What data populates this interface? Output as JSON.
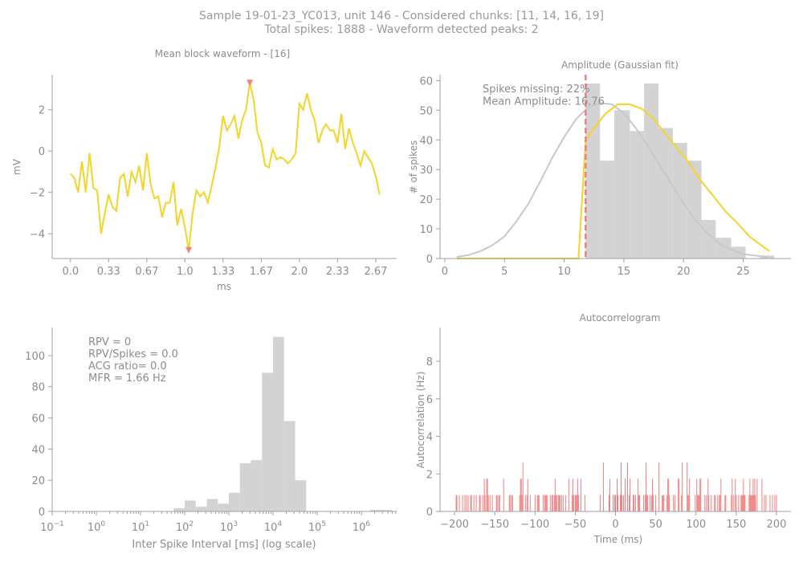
{
  "header": {
    "line1": "Sample 19-01-23_YC013, unit 146 - Considered chunks: [11, 14, 16, 19]",
    "line2": "Total spikes: 1888 - Waveform detected peaks: 2"
  },
  "colors": {
    "waveform": "#f5d327",
    "peak_marker": "#f08080",
    "hist_bar": "#d3d3d3",
    "gauss_fit": "#c8c8c8",
    "threshold": "#f08080",
    "acg": "#f08080",
    "axis": "#a0a0a0",
    "text": "#8c8c8c"
  },
  "chart_data": [
    {
      "id": "waveform",
      "type": "line",
      "title": "Mean block waveform - [16]",
      "xlabel": "ms",
      "ylabel": "mV",
      "xlim": [
        -0.16,
        2.85
      ],
      "ylim": [
        -5.2,
        3.7
      ],
      "xtick_values": [
        0.0,
        0.333,
        0.667,
        1.0,
        1.333,
        1.667,
        2.0,
        2.333,
        2.667
      ],
      "xtick_labels": [
        "0.0",
        "0.33",
        "0.67",
        "1.0",
        "1.33",
        "1.67",
        "2.0",
        "2.33",
        "2.67"
      ],
      "ytick_values": [
        -4,
        -2,
        0,
        2
      ],
      "ytick_labels": [
        "−4",
        "−2",
        "0",
        "2"
      ],
      "x": [
        0.0,
        0.033,
        0.067,
        0.1,
        0.133,
        0.167,
        0.2,
        0.233,
        0.267,
        0.3,
        0.333,
        0.367,
        0.4,
        0.433,
        0.467,
        0.5,
        0.533,
        0.567,
        0.6,
        0.633,
        0.667,
        0.7,
        0.733,
        0.767,
        0.8,
        0.833,
        0.867,
        0.9,
        0.933,
        0.967,
        1.0,
        1.033,
        1.067,
        1.1,
        1.133,
        1.167,
        1.2,
        1.233,
        1.267,
        1.3,
        1.333,
        1.367,
        1.4,
        1.433,
        1.467,
        1.5,
        1.533,
        1.567,
        1.6,
        1.633,
        1.667,
        1.7,
        1.733,
        1.767,
        1.8,
        1.833,
        1.867,
        1.9,
        1.933,
        1.967,
        2.0,
        2.033,
        2.067,
        2.1,
        2.133,
        2.167,
        2.2,
        2.233,
        2.267,
        2.3,
        2.333,
        2.367,
        2.4,
        2.433,
        2.467,
        2.5,
        2.533,
        2.567,
        2.6,
        2.633,
        2.667,
        2.7
      ],
      "values": [
        -1.1,
        -1.3,
        -2.0,
        -0.5,
        -2.0,
        -0.1,
        -1.8,
        -1.9,
        -4.0,
        -3.0,
        -2.1,
        -2.7,
        -2.9,
        -1.3,
        -1.1,
        -2.2,
        -1.0,
        -1.5,
        -0.7,
        -1.9,
        -0.1,
        -1.6,
        -2.3,
        -2.2,
        -3.2,
        -2.5,
        -2.5,
        -1.5,
        -3.6,
        -2.8,
        -3.7,
        -4.8,
        -3.0,
        -1.9,
        -2.2,
        -2.0,
        -2.5,
        -1.7,
        -0.8,
        0.2,
        1.7,
        1.0,
        1.3,
        1.7,
        0.6,
        1.5,
        2.0,
        3.3,
        2.5,
        0.9,
        0.4,
        -0.7,
        -0.8,
        0.1,
        -0.4,
        -0.3,
        -0.4,
        -0.6,
        -0.4,
        -0.1,
        2.3,
        2.0,
        2.8,
        2.0,
        1.5,
        0.4,
        1.0,
        1.3,
        1.0,
        1.0,
        0.4,
        1.8,
        0.1,
        1.1,
        0.4,
        -0.1,
        -0.7,
        0.0,
        -0.3,
        -0.6,
        -1.2,
        -2.1
      ],
      "peaks": [
        {
          "x": 1.033,
          "y": -4.8,
          "dir": "down"
        },
        {
          "x": 1.567,
          "y": 3.3,
          "dir": "up"
        }
      ]
    },
    {
      "id": "amplitude",
      "type": "bar",
      "title": "Amplitude (Gaussian fit)",
      "ylabel": "# of spikes",
      "xlim": [
        -0.4,
        29.0
      ],
      "ylim": [
        0,
        62
      ],
      "xtick_values": [
        0,
        5,
        10,
        15,
        20,
        25
      ],
      "xtick_labels": [
        "0",
        "5",
        "10",
        "15",
        "20",
        "25"
      ],
      "ytick_values": [
        0,
        10,
        20,
        30,
        40,
        50,
        60
      ],
      "ytick_labels": [
        "0",
        "10",
        "20",
        "30",
        "40",
        "50",
        "60"
      ],
      "bin_edges": [
        11.8,
        13.0,
        14.2,
        15.5,
        16.7,
        17.9,
        19.1,
        20.3,
        21.5,
        22.7,
        24.0,
        25.2,
        26.4,
        27.6
      ],
      "counts": [
        59,
        33,
        50,
        43,
        59,
        44,
        39,
        33,
        13,
        7,
        4,
        0,
        1
      ],
      "gauss_x": [
        1,
        2,
        3,
        4,
        5,
        6,
        7,
        8,
        9,
        10,
        11,
        12,
        13,
        14,
        15,
        16,
        17,
        18,
        19,
        20,
        21,
        22,
        23,
        24,
        25,
        26,
        27
      ],
      "gauss_y": [
        0.5,
        1.2,
        2.5,
        4.5,
        7.5,
        12.5,
        18.5,
        26,
        34,
        41,
        47,
        51,
        52.5,
        52,
        49,
        44,
        38,
        31.5,
        25,
        18.5,
        13,
        8.5,
        5,
        3,
        1.5,
        1,
        0.5
      ],
      "fit_curve_x": [
        1,
        2.5,
        4,
        5.5,
        7,
        8.5,
        10,
        11.2,
        11.8,
        12.5,
        13.5,
        14.5,
        15.5,
        16.5,
        17.5,
        18.5,
        19.5,
        20.5,
        21.5,
        22.5,
        23.5,
        24.5,
        25.5,
        26.5,
        27.2
      ],
      "fit_curve_y": [
        0,
        0,
        0,
        0,
        0,
        0,
        0,
        0,
        40,
        44,
        49,
        52,
        52,
        50.5,
        47,
        42,
        37,
        32,
        26,
        21,
        16,
        12,
        7.5,
        4.5,
        2.5
      ],
      "threshold_x": 11.8,
      "annotation": [
        "Spikes missing: 22%",
        "Mean Amplitude: 16.76"
      ]
    },
    {
      "id": "isi",
      "type": "bar",
      "xlabel": "Inter Spike Interval [ms] (log scale)",
      "xscale": "log",
      "xlim_log10": [
        -1,
        6.8
      ],
      "ylim": [
        0,
        118
      ],
      "xtick_values_log10": [
        -1,
        0,
        1,
        2,
        3,
        4,
        5,
        6
      ],
      "xtick_bases": [
        "10",
        "10",
        "10",
        "10",
        "10",
        "10",
        "10",
        "10"
      ],
      "xtick_exps": [
        "−1",
        "0",
        "1",
        "2",
        "3",
        "4",
        "5",
        "6"
      ],
      "ytick_values": [
        0,
        20,
        40,
        60,
        80,
        100
      ],
      "ytick_labels": [
        "0",
        "20",
        "40",
        "60",
        "80",
        "100"
      ],
      "bin_edges_log10": [
        1.75,
        2.0,
        2.25,
        2.5,
        2.75,
        3.0,
        3.25,
        3.5,
        3.75,
        4.0,
        4.25,
        4.5,
        4.75,
        5.0
      ],
      "counts": [
        2,
        7,
        3,
        8,
        5,
        12,
        31,
        33,
        89,
        112,
        58,
        20,
        0
      ],
      "extra_bins_log10": [
        [
          6.2,
          6.5,
          1
        ],
        [
          6.5,
          6.7,
          1
        ]
      ],
      "annotation": [
        "RPV = 0",
        "RPV/Spikes = 0.0",
        "ACG ratio= 0.0",
        "MFR = 1.66 Hz"
      ]
    },
    {
      "id": "acg",
      "type": "bar",
      "title": "Autocorrelogram",
      "xlabel": "Time (ms)",
      "ylabel": "Autocorrelation (Hz)",
      "xlim": [
        -218,
        218
      ],
      "ylim": [
        0,
        9.8
      ],
      "xtick_values": [
        -200,
        -150,
        -100,
        -50,
        0,
        50,
        100,
        150,
        200
      ],
      "xtick_labels": [
        "−200",
        "−150",
        "−100",
        "−50",
        "0",
        "50",
        "100",
        "150",
        "200"
      ],
      "ytick_values": [
        0,
        2,
        4,
        6,
        8
      ],
      "ytick_labels": [
        "0",
        "2",
        "4",
        "6",
        "8"
      ],
      "bar_values": []
    }
  ]
}
